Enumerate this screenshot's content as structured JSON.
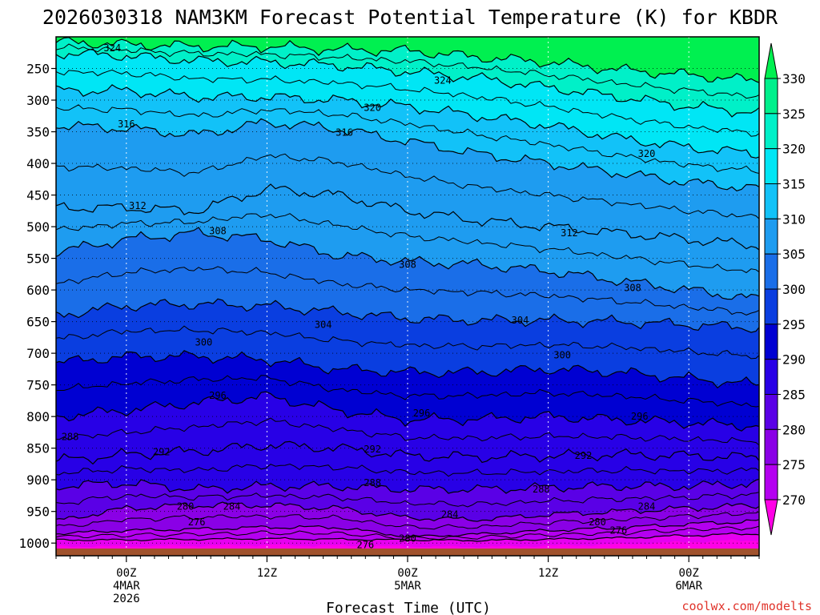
{
  "chart_data": {
    "type": "heatmap",
    "title": "2026030318 NAM3KM Forecast Potential Temperature (K) for KBDR",
    "xlabel": "Forecast Time (UTC)",
    "ylabel": "",
    "credit": "coolwx.com/modelts",
    "y_axis": {
      "ticks": [
        250,
        300,
        350,
        400,
        450,
        500,
        550,
        600,
        650,
        700,
        750,
        800,
        850,
        900,
        950,
        1000
      ],
      "labels": [
        "250",
        "300",
        "350",
        "400",
        "450",
        "500",
        "550",
        "600",
        "650",
        "700",
        "750",
        "800",
        "850",
        "900",
        "950",
        "1000"
      ],
      "range": [
        200,
        1020
      ]
    },
    "x_axis": {
      "range_hours": [
        -5,
        45
      ],
      "ticks": [
        {
          "hour": 0,
          "lines": [
            "00Z",
            "4MAR",
            "2026"
          ]
        },
        {
          "hour": 10,
          "lines": [
            "12Z"
          ]
        },
        {
          "hour": 20,
          "lines": [
            "00Z",
            "5MAR"
          ]
        },
        {
          "hour": 30,
          "lines": [
            "12Z"
          ]
        },
        {
          "hour": 40,
          "lines": [
            "00Z",
            "6MAR"
          ]
        }
      ]
    },
    "colorbar": {
      "levels": [
        270,
        275,
        280,
        285,
        290,
        295,
        300,
        305,
        310,
        315,
        320,
        325,
        330
      ],
      "labels": [
        "330",
        "325",
        "320",
        "315",
        "310",
        "305",
        "300",
        "295",
        "290",
        "285",
        "280",
        "275",
        "270"
      ],
      "colors": [
        "#ff00e6",
        "#e600f0",
        "#b400f0",
        "#8a00e6",
        "#5a00e6",
        "#2800e6",
        "#0000d2",
        "#0a3ee0",
        "#1a6ee8",
        "#1e9cf0",
        "#12c2f8",
        "#00e6f5",
        "#00f0c8",
        "#00f08c",
        "#00f050"
      ]
    },
    "theta_levels": [
      272,
      276,
      280,
      284,
      288,
      292,
      296,
      300,
      304,
      308,
      312,
      316,
      320,
      324,
      328
    ],
    "profiles_hours": [
      -5,
      0,
      5,
      10,
      15,
      20,
      25,
      30,
      35,
      40,
      45
    ],
    "isentrope_pressures": {
      "276": [
        995,
        995,
        994,
        993,
        994,
        995,
        996,
        994,
        992,
        988,
        985
      ],
      "280": [
        985,
        980,
        978,
        975,
        975,
        990,
        986,
        980,
        976,
        970,
        965
      ],
      "284": [
        965,
        945,
        940,
        940,
        945,
        960,
        963,
        955,
        950,
        945,
        940
      ],
      "288": [
        910,
        905,
        915,
        910,
        910,
        915,
        915,
        912,
        910,
        910,
        905
      ],
      "292": [
        870,
        860,
        855,
        845,
        850,
        862,
        864,
        862,
        860,
        862,
        865
      ],
      "296": [
        800,
        790,
        778,
        768,
        790,
        805,
        804,
        800,
        805,
        810,
        815
      ],
      "300": [
        715,
        705,
        705,
        710,
        725,
        730,
        730,
        725,
        730,
        740,
        750
      ],
      "304": [
        640,
        625,
        622,
        625,
        635,
        645,
        648,
        648,
        650,
        655,
        660
      ],
      "308": [
        540,
        520,
        510,
        520,
        545,
        555,
        560,
        570,
        585,
        600,
        615
      ],
      "312": [
        470,
        470,
        475,
        440,
        450,
        475,
        490,
        500,
        510,
        520,
        530
      ],
      "316": [
        340,
        345,
        355,
        335,
        345,
        365,
        385,
        400,
        415,
        430,
        440
      ],
      "320": [
        285,
        285,
        295,
        295,
        300,
        310,
        325,
        340,
        360,
        375,
        385
      ],
      "324": [
        225,
        230,
        238,
        240,
        245,
        255,
        265,
        280,
        295,
        310,
        320
      ],
      "328": [
        208,
        212,
        215,
        215,
        220,
        222,
        232,
        240,
        252,
        260,
        270
      ]
    },
    "contour_labels": [
      {
        "text": "324",
        "hour": -1.0,
        "p": 218
      },
      {
        "text": "324",
        "hour": 22.5,
        "p": 269
      },
      {
        "text": "320",
        "hour": 17.5,
        "p": 312
      },
      {
        "text": "316",
        "hour": 0.0,
        "p": 338
      },
      {
        "text": "316",
        "hour": 15.5,
        "p": 351
      },
      {
        "text": "320",
        "hour": 37.0,
        "p": 385
      },
      {
        "text": "312",
        "hour": 0.8,
        "p": 467
      },
      {
        "text": "312",
        "hour": 31.5,
        "p": 510
      },
      {
        "text": "308",
        "hour": 6.5,
        "p": 507
      },
      {
        "text": "308",
        "hour": 20.0,
        "p": 560
      },
      {
        "text": "308",
        "hour": 36.0,
        "p": 597
      },
      {
        "text": "304",
        "hour": 14.0,
        "p": 655
      },
      {
        "text": "304",
        "hour": 28.0,
        "p": 648
      },
      {
        "text": "300",
        "hour": 5.5,
        "p": 683
      },
      {
        "text": "300",
        "hour": 31.0,
        "p": 703
      },
      {
        "text": "296",
        "hour": 6.5,
        "p": 767
      },
      {
        "text": "296",
        "hour": 21.0,
        "p": 795
      },
      {
        "text": "296",
        "hour": 36.5,
        "p": 800
      },
      {
        "text": "292",
        "hour": 2.5,
        "p": 856
      },
      {
        "text": "292",
        "hour": 17.5,
        "p": 852
      },
      {
        "text": "292",
        "hour": 32.5,
        "p": 862
      },
      {
        "text": "288",
        "hour": -4.0,
        "p": 832
      },
      {
        "text": "288",
        "hour": 17.5,
        "p": 905
      },
      {
        "text": "288",
        "hour": 29.5,
        "p": 915
      },
      {
        "text": "284",
        "hour": 7.5,
        "p": 942
      },
      {
        "text": "284",
        "hour": 23.0,
        "p": 955
      },
      {
        "text": "284",
        "hour": 37.0,
        "p": 942
      },
      {
        "text": "280",
        "hour": 4.2,
        "p": 942
      },
      {
        "text": "280",
        "hour": 20.0,
        "p": 993
      },
      {
        "text": "280",
        "hour": 33.5,
        "p": 967
      },
      {
        "text": "276",
        "hour": 5.0,
        "p": 967
      },
      {
        "text": "276",
        "hour": 17.0,
        "p": 1003
      },
      {
        "text": "276",
        "hour": 35.0,
        "p": 980
      }
    ]
  }
}
